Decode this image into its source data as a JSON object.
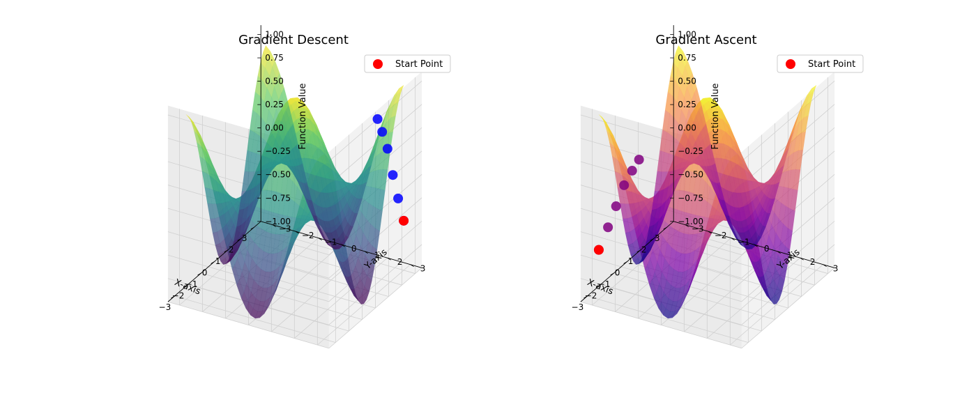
{
  "figure": {
    "background": "#ffffff"
  },
  "chart_data": [
    {
      "type": "surface3d",
      "title": "Gradient Descent",
      "xlabel": "X-axis",
      "ylabel": "Y-axis",
      "zlabel": "Function Value",
      "xlim": [
        -3.5,
        3.5
      ],
      "ylim": [
        -3.5,
        3.5
      ],
      "zlim": [
        -1,
        1.1
      ],
      "x_ticks": [
        "−3",
        "−2",
        "−1",
        "0",
        "1",
        "2",
        "3"
      ],
      "y_ticks": [
        "−3",
        "−2",
        "−1",
        "0",
        "1",
        "2",
        "3"
      ],
      "z_ticks": [
        "−1.00",
        "−0.75",
        "−0.50",
        "−0.25",
        "0.00",
        "0.25",
        "0.50",
        "0.75",
        "1.00"
      ],
      "surface_colormap": "viridis",
      "colormap_stops": [
        "#440154",
        "#3b528b",
        "#21918c",
        "#5ec962",
        "#fde725"
      ],
      "surface_alpha": 0.7,
      "legend": {
        "label": "Start Point",
        "location": "upper right"
      },
      "path_color": "#0000ff",
      "start_color": "#ff0000",
      "path_points": [
        {
          "x": 1.03,
          "y": 3.0,
          "z": 0.86
        },
        {
          "x": 1.38,
          "y": 3.0,
          "z": 0.68
        },
        {
          "x": 1.78,
          "y": 3.0,
          "z": 0.45
        },
        {
          "x": 2.18,
          "y": 3.0,
          "z": 0.12
        },
        {
          "x": 2.58,
          "y": 3.0,
          "z": -0.18
        },
        {
          "x": 3.0,
          "y": 3.0,
          "z": -0.47
        }
      ],
      "start_point": {
        "x": 3.0,
        "y": 3.0,
        "z": -0.47
      }
    },
    {
      "type": "surface3d",
      "title": "Gradient Ascent",
      "xlabel": "X-axis",
      "ylabel": "Y-axis",
      "zlabel": "Function Value",
      "xlim": [
        -3.5,
        3.5
      ],
      "ylim": [
        -3.5,
        3.5
      ],
      "zlim": [
        -1,
        1.1
      ],
      "x_ticks": [
        "−3",
        "−2",
        "−1",
        "0",
        "1",
        "2",
        "3"
      ],
      "y_ticks": [
        "−3",
        "−2",
        "−1",
        "0",
        "1",
        "2",
        "3"
      ],
      "z_ticks": [
        "−1.00",
        "−0.75",
        "−0.50",
        "−0.25",
        "0.00",
        "0.25",
        "0.50",
        "0.75",
        "1.00"
      ],
      "surface_colormap": "plasma",
      "colormap_stops": [
        "#0d0887",
        "#7e03a8",
        "#cc4778",
        "#f89540",
        "#f0f921"
      ],
      "surface_alpha": 0.7,
      "legend": {
        "label": "Start Point",
        "location": "upper right"
      },
      "path_color": "#800080",
      "start_color": "#ff0000",
      "path_points": [
        {
          "x": -3.0,
          "y": -3.0,
          "z": -0.47
        },
        {
          "x": -3.0,
          "y": -2.6,
          "z": -0.2
        },
        {
          "x": -3.0,
          "y": -2.25,
          "z": 0.05
        },
        {
          "x": -3.0,
          "y": -1.9,
          "z": 0.3
        },
        {
          "x": -3.0,
          "y": -1.55,
          "z": 0.48
        },
        {
          "x": -3.0,
          "y": -1.25,
          "z": 0.62
        }
      ],
      "start_point": {
        "x": -3.0,
        "y": -3.0,
        "z": -0.47
      }
    }
  ]
}
